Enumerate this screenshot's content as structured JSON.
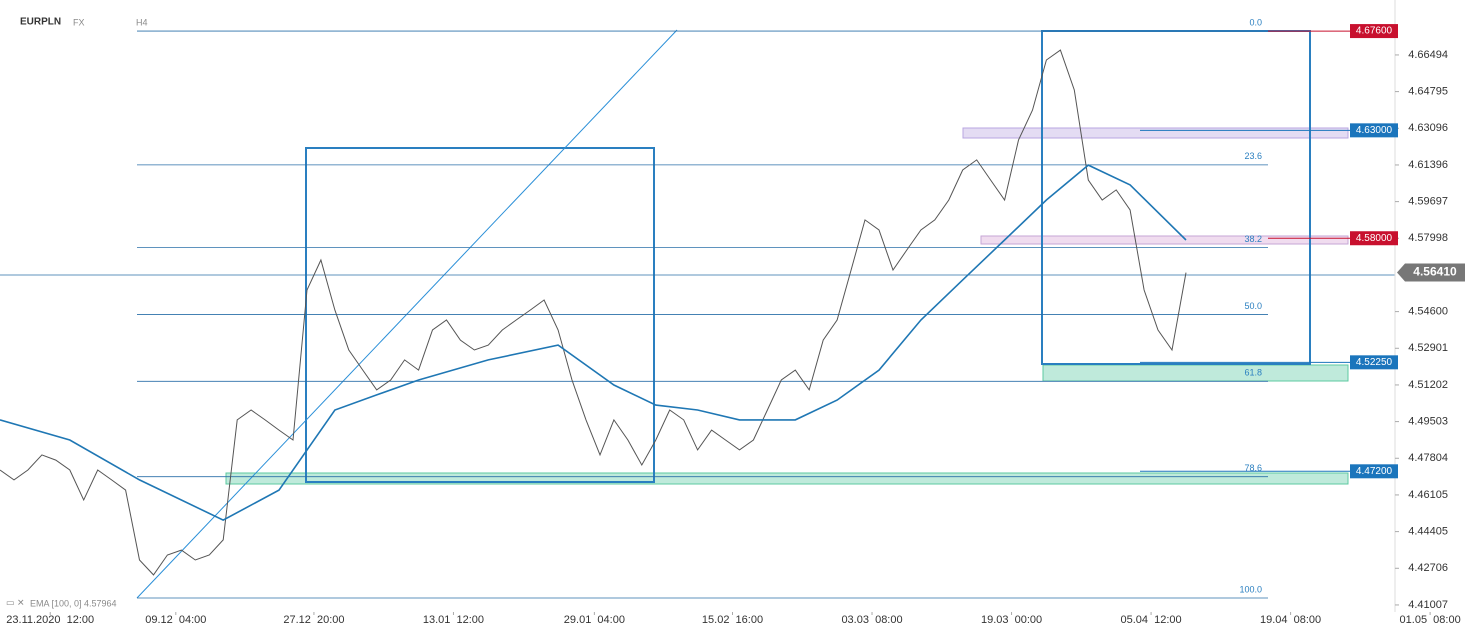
{
  "chart_data": {
    "type": "line",
    "title": "EURPLN",
    "market": "FX",
    "interval": "H4",
    "legend": "EMA [100, 0] 4.57964",
    "xlim": [
      0,
      105
    ],
    "ylim": [
      4.4068,
      4.6904
    ],
    "xticks": [
      {
        "value": 3.6,
        "label": "23.11.2020  12:00"
      },
      {
        "value": 12.6,
        "label": "09.12  04:00"
      },
      {
        "value": 22.5,
        "label": "27.12  20:00"
      },
      {
        "value": 32.5,
        "label": "13.01  12:00"
      },
      {
        "value": 42.6,
        "label": "29.01  04:00"
      },
      {
        "value": 52.5,
        "label": "15.02  16:00"
      },
      {
        "value": 62.5,
        "label": "03.03  08:00"
      },
      {
        "value": 72.5,
        "label": "19.03  00:00"
      },
      {
        "value": 82.5,
        "label": "05.04  12:00"
      },
      {
        "value": 92.5,
        "label": "19.04  08:00"
      },
      {
        "value": 102.5,
        "label": "01.05  08:00"
      }
    ],
    "yticks": [
      4.66494,
      4.64795,
      4.63096,
      4.61396,
      4.59697,
      4.57998,
      {
        "value": 4.546,
        "label": "4.54600"
      },
      4.52901,
      4.51202,
      4.49503,
      4.47804,
      4.46105,
      4.44405,
      4.42706,
      4.41007
    ],
    "series": [
      {
        "name": "EURPLN",
        "color": "#555555",
        "x": [
          0,
          1,
          2,
          3,
          4,
          5,
          6,
          7,
          8,
          9,
          10,
          11,
          12,
          13,
          14,
          15,
          16,
          17,
          18,
          19,
          20,
          21,
          22,
          23,
          24,
          25,
          26,
          27,
          28,
          29,
          30,
          31,
          32,
          33,
          34,
          35,
          36,
          37,
          38,
          39,
          40,
          41,
          42,
          43,
          44,
          45,
          46,
          47,
          48,
          49,
          50,
          51,
          52,
          53,
          54,
          55,
          56,
          57,
          58,
          59,
          60,
          61,
          62,
          63,
          64,
          65,
          66,
          67,
          68,
          69,
          70,
          71,
          72,
          73,
          74,
          75,
          76,
          77,
          78,
          79,
          80,
          81,
          82,
          83,
          84,
          85
        ],
        "values": [
          4.4726,
          4.468,
          4.4726,
          4.4796,
          4.4772,
          4.4726,
          4.4587,
          4.4726,
          4.468,
          4.4633,
          4.4309,
          4.424,
          4.4332,
          4.4355,
          4.4309,
          4.4332,
          4.4402,
          4.4958,
          4.5004,
          4.4958,
          4.4911,
          4.4865,
          4.556,
          4.5699,
          4.5467,
          4.5282,
          4.5189,
          4.5097,
          4.5143,
          4.5236,
          4.5189,
          4.5375,
          4.5421,
          4.5328,
          4.5282,
          4.5305,
          4.5375,
          4.5421,
          4.5467,
          4.5514,
          4.5375,
          4.5143,
          4.4958,
          4.4796,
          4.4958,
          4.4865,
          4.4749,
          4.4865,
          4.5004,
          4.4958,
          4.4819,
          4.4911,
          4.4865,
          4.4819,
          4.4865,
          4.5004,
          4.5143,
          4.5189,
          4.5097,
          4.5328,
          4.5421,
          4.5653,
          4.5885,
          4.5838,
          4.5653,
          4.5746,
          4.5838,
          4.5885,
          4.5977,
          4.6116,
          4.6163,
          4.607,
          4.5977,
          4.6255,
          4.6394,
          4.6626,
          4.6672,
          4.6487,
          4.607,
          4.5977,
          4.6024,
          4.5931,
          4.556,
          4.5375,
          4.5282,
          4.5641
        ]
      },
      {
        "name": "EMA",
        "color": "#1f77b4",
        "x": [
          0,
          5,
          10,
          16,
          20,
          24,
          27,
          30,
          35,
          40,
          44,
          47,
          50,
          53,
          57,
          60,
          63,
          66,
          69,
          72,
          75,
          78,
          81,
          85
        ],
        "values": [
          4.4958,
          4.4865,
          4.468,
          4.4494,
          4.4633,
          4.5004,
          4.5074,
          4.5143,
          4.5236,
          4.5305,
          4.512,
          4.5027,
          4.5004,
          4.4958,
          4.4958,
          4.505,
          4.5189,
          4.5421,
          4.5607,
          4.5792,
          4.5977,
          4.6139,
          4.6047,
          4.5792
        ]
      }
    ],
    "fib_levels": [
      {
        "label": "0.0",
        "value": 4.676
      },
      {
        "label": "23.6",
        "value": 4.614
      },
      {
        "label": "38.2",
        "value": 4.5757
      },
      {
        "label": "50.0",
        "value": 4.5447
      },
      {
        "label": "61.8",
        "value": 4.5137
      },
      {
        "label": "78.6",
        "value": 4.4695
      },
      {
        "label": "100.0",
        "value": 4.4133
      }
    ],
    "price_labels": [
      {
        "value": 4.676,
        "label": "4.67600",
        "color": "#c8102e"
      },
      {
        "value": 4.63,
        "label": "4.63000",
        "color": "#1b75bc"
      },
      {
        "value": 4.58,
        "label": "4.58000",
        "color": "#c8102e"
      },
      {
        "value": 4.5225,
        "label": "4.52250",
        "color": "#1b75bc"
      },
      {
        "value": 4.472,
        "label": "4.47200",
        "color": "#1b75bc"
      }
    ],
    "current_price": {
      "value": 4.5641,
      "label": "4.56410",
      "color": "#777777"
    }
  }
}
